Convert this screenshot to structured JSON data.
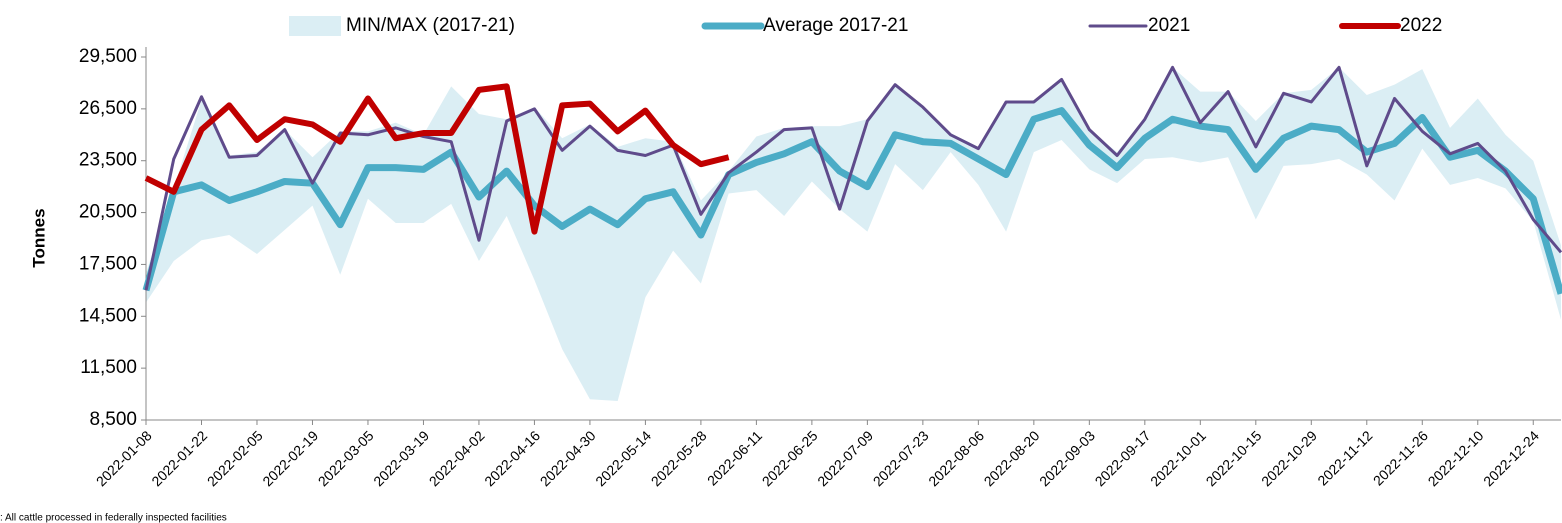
{
  "chart_data": {
    "type": "line",
    "y_label": "Tonnes",
    "note": ": All cattle processed in federally inspected facilities",
    "categories": [
      "2022-01-08",
      null,
      "2022-01-22",
      null,
      "2022-02-05",
      null,
      "2022-02-19",
      null,
      "2022-03-05",
      null,
      "2022-03-19",
      null,
      "2022-04-02",
      null,
      "2022-04-16",
      null,
      "2022-04-30",
      null,
      "2022-05-14",
      null,
      "2022-05-28",
      null,
      "2022-06-11",
      null,
      "2022-06-25",
      null,
      "2022-07-09",
      null,
      "2022-07-23",
      null,
      "2022-08-06",
      null,
      "2022-08-20",
      null,
      "2022-09-03",
      null,
      "2022-09-17",
      null,
      "2022-10-01",
      null,
      "2022-10-15",
      null,
      "2022-10-29",
      null,
      "2022-11-12",
      null,
      "2022-11-26",
      null,
      "2022-12-10",
      null,
      "2022-12-24",
      null
    ],
    "ylim": [
      8500,
      29500
    ],
    "yticks": [
      {
        "value": 8500,
        "label": "8,500"
      },
      {
        "value": 11500,
        "label": "11,500"
      },
      {
        "value": 14500,
        "label": "14,500"
      },
      {
        "value": 17500,
        "label": "17,500"
      },
      {
        "value": 20500,
        "label": "20,500"
      },
      {
        "value": 23500,
        "label": "23,500"
      },
      {
        "value": 26500,
        "label": "26,500"
      },
      {
        "value": 29500,
        "label": "29,500"
      }
    ],
    "grid": false,
    "legend": "top",
    "band": {
      "name": "MIN/MAX (2017-21)",
      "color": "#dbeef4",
      "low": [
        15300,
        17700,
        18900,
        19200,
        18100,
        19500,
        20900,
        16900,
        21300,
        19900,
        19900,
        21000,
        17700,
        20300,
        16600,
        12600,
        9700,
        9600,
        15600,
        18300,
        16400,
        21600,
        21800,
        20300,
        22300,
        20700,
        19400,
        23300,
        21800,
        24000,
        22100,
        19400,
        24000,
        24700,
        23000,
        22200,
        23600,
        23700,
        23400,
        23700,
        20100,
        23200,
        23300,
        23600,
        22700,
        21200,
        24200,
        22100,
        22500,
        21900,
        20000,
        14300
      ],
      "high": [
        17000,
        21900,
        27000,
        23800,
        24000,
        25300,
        23700,
        25200,
        25200,
        25700,
        25000,
        27800,
        26200,
        25900,
        26600,
        24800,
        25600,
        24300,
        24800,
        24600,
        21200,
        22900,
        24900,
        25400,
        25500,
        25500,
        25900,
        27900,
        26600,
        25100,
        24300,
        26900,
        26900,
        28200,
        25300,
        24000,
        26000,
        28900,
        27500,
        27500,
        25800,
        27400,
        27600,
        28900,
        27300,
        27900,
        28800,
        25400,
        27100,
        25000,
        23500,
        18600
      ]
    },
    "series": [
      {
        "name": "Average 2017-21",
        "color": "#4bacc6",
        "width": 7,
        "values": [
          16000,
          21700,
          22100,
          21200,
          21700,
          22300,
          22200,
          19800,
          23100,
          23100,
          23000,
          24000,
          21400,
          22900,
          20900,
          19700,
          20700,
          19800,
          21300,
          21700,
          19200,
          22700,
          23400,
          23900,
          24600,
          22900,
          22000,
          25000,
          24600,
          24500,
          23600,
          22700,
          25900,
          26400,
          24400,
          23100,
          24800,
          25900,
          25500,
          25300,
          23000,
          24800,
          25500,
          25300,
          24000,
          24500,
          26000,
          23700,
          24100,
          22900,
          21300,
          15800
        ]
      },
      {
        "name": "2021",
        "color": "#5f4b8b",
        "width": 3,
        "values": [
          16000,
          23600,
          27200,
          23700,
          23800,
          25300,
          22200,
          25100,
          25000,
          25400,
          24900,
          24600,
          18900,
          25800,
          26500,
          24100,
          25500,
          24100,
          23800,
          24400,
          20400,
          22800,
          24000,
          25300,
          25400,
          20700,
          25800,
          27900,
          26600,
          25000,
          24200,
          26900,
          26900,
          28200,
          25300,
          23800,
          25900,
          28900,
          25700,
          27500,
          24300,
          27400,
          26900,
          28900,
          23200,
          27100,
          25200,
          23900,
          24500,
          22900,
          20100,
          18200
        ]
      },
      {
        "name": "2022",
        "color": "#c00000",
        "width": 6,
        "values": [
          22500,
          21700,
          25300,
          26700,
          24700,
          25900,
          25600,
          24600,
          27100,
          24800,
          25100,
          25100,
          27600,
          27800,
          19400,
          26700,
          26800,
          25200,
          26400,
          24400,
          23300,
          23700,
          null,
          null,
          null,
          null,
          null,
          null,
          null,
          null,
          null,
          null,
          null,
          null,
          null,
          null,
          null,
          null,
          null,
          null,
          null,
          null,
          null,
          null,
          null,
          null,
          null,
          null,
          null,
          null,
          null,
          null
        ]
      }
    ]
  }
}
